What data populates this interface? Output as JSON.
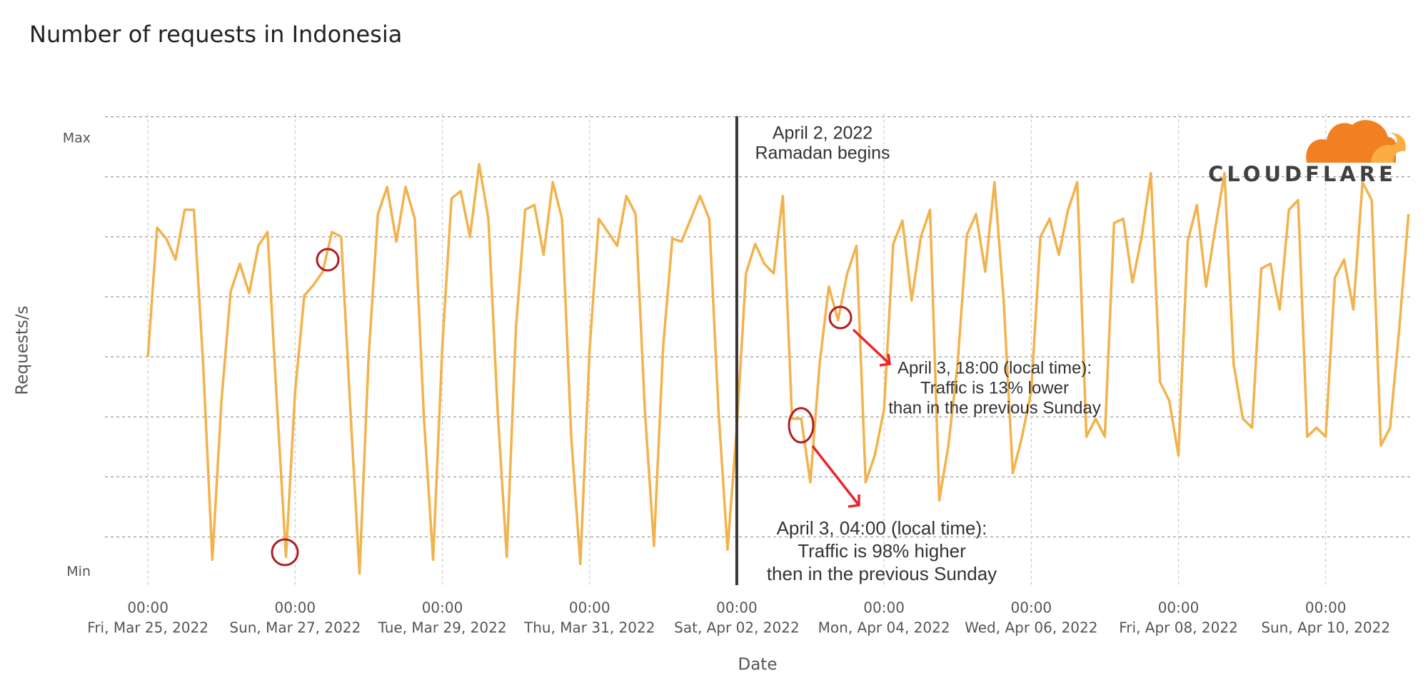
{
  "chart_data": {
    "type": "line",
    "title": "Number of requests in Indonesia",
    "xlabel": "Date",
    "ylabel": "Requests/s",
    "color": "#f2b24c",
    "ylim": [
      1.5,
      80.5
    ],
    "yticks": [
      {
        "value": 4.2,
        "label": "Min"
      },
      {
        "value": 76.4,
        "label": "Max"
      }
    ],
    "ygrid": [
      10,
      20,
      30,
      40,
      50,
      60,
      70,
      80
    ],
    "xlim": [
      "2022-03-24 10:00",
      "2022-04-11 04:00"
    ],
    "xticks": [
      {
        "value": "2022-03-25 00:00",
        "label": [
          "00:00",
          "Fri, Mar 25, 2022"
        ]
      },
      {
        "value": "2022-03-27 00:00",
        "label": [
          "00:00",
          "Sun, Mar 27, 2022"
        ]
      },
      {
        "value": "2022-03-29 00:00",
        "label": [
          "00:00",
          "Tue, Mar 29, 2022"
        ]
      },
      {
        "value": "2022-03-31 00:00",
        "label": [
          "00:00",
          "Thu, Mar 31, 2022"
        ]
      },
      {
        "value": "2022-04-02 00:00",
        "label": [
          "00:00",
          "Sat, Apr 02, 2022"
        ]
      },
      {
        "value": "2022-04-04 00:00",
        "label": [
          "00:00",
          "Mon, Apr 04, 2022"
        ]
      },
      {
        "value": "2022-04-06 00:00",
        "label": [
          "00:00",
          "Wed, Apr 06, 2022"
        ]
      },
      {
        "value": "2022-04-08 00:00",
        "label": [
          "00:00",
          "Fri, Apr 08, 2022"
        ]
      },
      {
        "value": "2022-04-10 00:00",
        "label": [
          "00:00",
          "Sun, Apr 10, 2022"
        ]
      }
    ],
    "grid": true,
    "x": [
      "2022-03-25 00:00",
      "2022-03-25 03:00",
      "2022-03-25 06:00",
      "2022-03-25 09:00",
      "2022-03-25 12:00",
      "2022-03-25 15:00",
      "2022-03-25 18:00",
      "2022-03-25 21:00",
      "2022-03-26 00:00",
      "2022-03-26 03:00",
      "2022-03-26 06:00",
      "2022-03-26 09:00",
      "2022-03-26 12:00",
      "2022-03-26 15:00",
      "2022-03-26 18:00",
      "2022-03-26 21:00",
      "2022-03-27 00:00",
      "2022-03-27 03:00",
      "2022-03-27 06:00",
      "2022-03-27 09:00",
      "2022-03-27 12:00",
      "2022-03-27 15:00",
      "2022-03-27 18:00",
      "2022-03-27 21:00",
      "2022-03-28 00:00",
      "2022-03-28 03:00",
      "2022-03-28 06:00",
      "2022-03-28 09:00",
      "2022-03-28 12:00",
      "2022-03-28 15:00",
      "2022-03-28 18:00",
      "2022-03-28 21:00",
      "2022-03-29 00:00",
      "2022-03-29 03:00",
      "2022-03-29 06:00",
      "2022-03-29 09:00",
      "2022-03-29 12:00",
      "2022-03-29 15:00",
      "2022-03-29 18:00",
      "2022-03-29 21:00",
      "2022-03-30 00:00",
      "2022-03-30 03:00",
      "2022-03-30 06:00",
      "2022-03-30 09:00",
      "2022-03-30 12:00",
      "2022-03-30 15:00",
      "2022-03-30 18:00",
      "2022-03-30 21:00",
      "2022-03-31 00:00",
      "2022-03-31 03:00",
      "2022-03-31 06:00",
      "2022-03-31 09:00",
      "2022-03-31 12:00",
      "2022-03-31 15:00",
      "2022-03-31 18:00",
      "2022-03-31 21:00",
      "2022-04-01 00:00",
      "2022-04-01 03:00",
      "2022-04-01 06:00",
      "2022-04-01 09:00",
      "2022-04-01 12:00",
      "2022-04-01 15:00",
      "2022-04-01 18:00",
      "2022-04-01 21:00",
      "2022-04-02 00:00",
      "2022-04-02 03:00",
      "2022-04-02 06:00",
      "2022-04-02 09:00",
      "2022-04-02 12:00",
      "2022-04-02 15:00",
      "2022-04-02 18:00",
      "2022-04-02 21:00",
      "2022-04-03 00:00",
      "2022-04-03 03:00",
      "2022-04-03 06:00",
      "2022-04-03 09:00",
      "2022-04-03 12:00",
      "2022-04-03 15:00",
      "2022-04-03 18:00",
      "2022-04-03 21:00",
      "2022-04-04 00:00",
      "2022-04-04 03:00",
      "2022-04-04 06:00",
      "2022-04-04 09:00",
      "2022-04-04 12:00",
      "2022-04-04 15:00",
      "2022-04-04 18:00",
      "2022-04-04 21:00",
      "2022-04-05 00:00",
      "2022-04-05 03:00",
      "2022-04-05 06:00",
      "2022-04-05 09:00",
      "2022-04-05 12:00",
      "2022-04-05 15:00",
      "2022-04-05 18:00",
      "2022-04-05 21:00",
      "2022-04-06 00:00",
      "2022-04-06 03:00",
      "2022-04-06 06:00",
      "2022-04-06 09:00",
      "2022-04-06 12:00",
      "2022-04-06 15:00",
      "2022-04-06 18:00",
      "2022-04-06 21:00",
      "2022-04-07 00:00",
      "2022-04-07 03:00",
      "2022-04-07 06:00",
      "2022-04-07 09:00",
      "2022-04-07 12:00",
      "2022-04-07 15:00",
      "2022-04-07 18:00",
      "2022-04-07 21:00",
      "2022-04-08 00:00",
      "2022-04-08 03:00",
      "2022-04-08 06:00",
      "2022-04-08 09:00",
      "2022-04-08 12:00",
      "2022-04-08 15:00",
      "2022-04-08 18:00",
      "2022-04-08 21:00",
      "2022-04-09 00:00",
      "2022-04-09 03:00",
      "2022-04-09 06:00",
      "2022-04-09 09:00",
      "2022-04-09 12:00",
      "2022-04-09 15:00",
      "2022-04-09 18:00",
      "2022-04-09 21:00",
      "2022-04-10 00:00",
      "2022-04-10 03:00",
      "2022-04-10 06:00",
      "2022-04-10 09:00",
      "2022-04-10 12:00",
      "2022-04-10 15:00",
      "2022-04-10 18:00",
      "2022-04-10 21:00",
      "2022-04-11 00:00",
      "2022-04-11 03:00"
    ],
    "values": [
      40.0,
      61.5,
      59.7,
      56.2,
      64.5,
      64.5,
      38.8,
      6.2,
      32.7,
      50.9,
      55.5,
      50.6,
      58.5,
      60.8,
      32.7,
      6.7,
      34.2,
      50.2,
      52.0,
      54.2,
      60.8,
      60.0,
      31.2,
      3.9,
      40.3,
      63.8,
      68.3,
      59.2,
      68.3,
      63.0,
      29.7,
      6.2,
      41.8,
      66.4,
      67.6,
      60.0,
      72.1,
      63.0,
      31.2,
      6.7,
      44.8,
      64.5,
      65.3,
      57.0,
      69.1,
      63.0,
      26.7,
      5.5,
      41.1,
      63.0,
      60.8,
      58.5,
      66.8,
      63.8,
      31.2,
      8.5,
      41.8,
      59.7,
      59.2,
      63.0,
      66.8,
      63.0,
      31.2,
      7.9,
      28.2,
      53.9,
      58.8,
      55.5,
      53.9,
      66.8,
      29.7,
      29.7,
      19.1,
      38.8,
      51.7,
      46.1,
      53.9,
      58.5,
      19.1,
      23.6,
      31.2,
      58.8,
      62.7,
      49.4,
      60.0,
      64.5,
      16.1,
      25.2,
      38.8,
      60.3,
      63.8,
      54.2,
      69.1,
      49.4,
      20.6,
      26.7,
      34.2,
      60.0,
      63.0,
      57.0,
      64.5,
      69.1,
      26.7,
      29.7,
      26.7,
      62.3,
      63.0,
      52.4,
      60.0,
      70.6,
      35.8,
      32.7,
      23.6,
      59.2,
      65.3,
      51.7,
      61.5,
      70.6,
      38.8,
      29.7,
      28.2,
      54.7,
      55.5,
      47.9,
      64.5,
      66.1,
      26.7,
      28.2,
      26.7,
      53.2,
      56.2,
      47.9,
      69.1,
      66.1,
      25.2,
      28.2,
      44.8,
      63.8
    ],
    "vline": {
      "x": "2022-04-02 00:00",
      "label": [
        "April 2, 2022",
        "Ramadan begins"
      ]
    },
    "annotations": [
      {
        "lines": [
          "April 3, 18:00 (local time):",
          "Traffic is 13% lower",
          "than in the previous Sunday"
        ]
      },
      {
        "lines": [
          "April 3, 04:00 (local time):",
          "Traffic is 98% higher",
          "then in the previous Sunday"
        ]
      }
    ],
    "logo": "CLOUDFLARE"
  }
}
